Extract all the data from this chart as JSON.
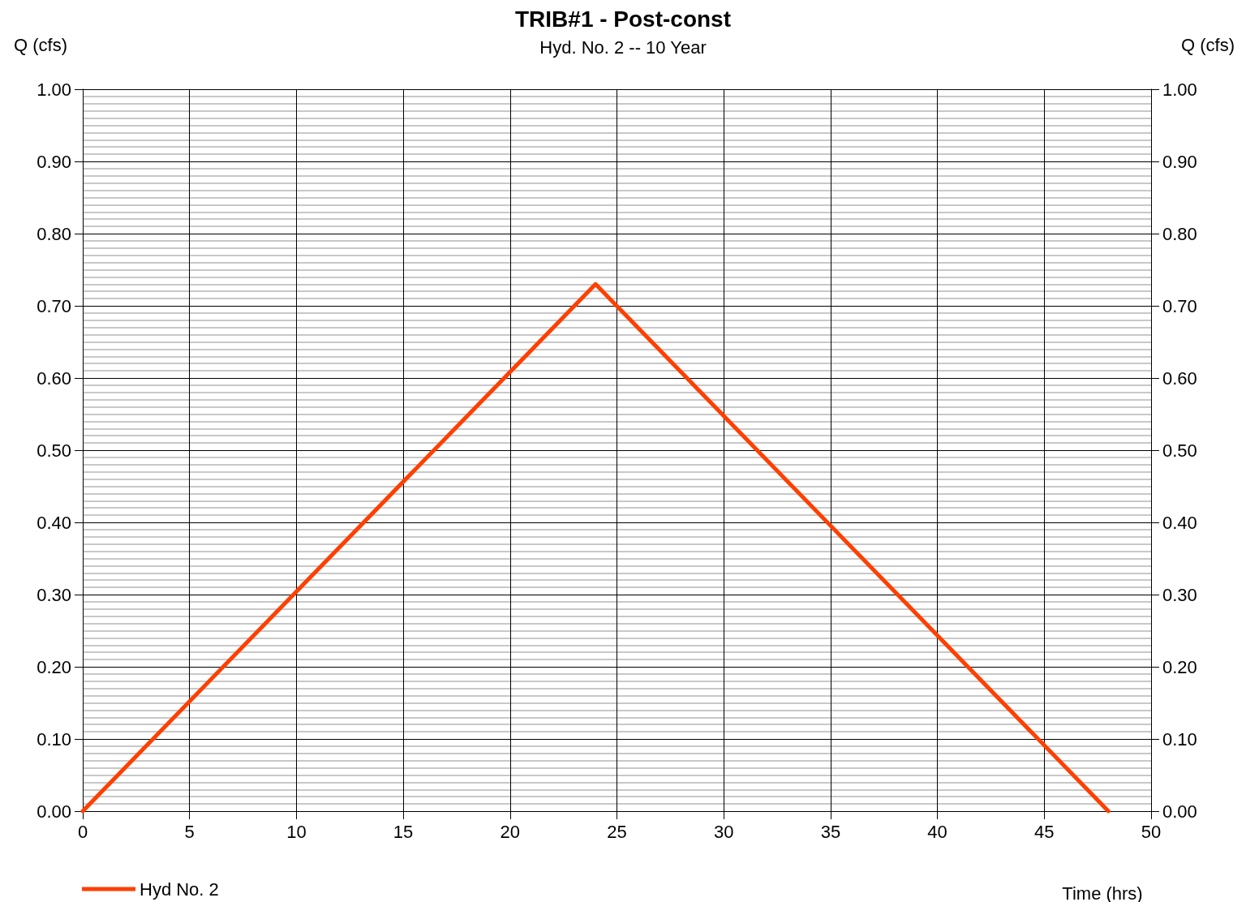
{
  "chart_data": {
    "type": "line",
    "title": "TRIB#1 - Post-const",
    "subtitle": "Hyd. No. 2 -- 10 Year",
    "xlabel": "Time (hrs)",
    "ylabel": "Q (cfs)",
    "y2label": "Q (cfs)",
    "x": [
      0,
      24,
      48
    ],
    "series": [
      {
        "name": "Hyd No. 2",
        "color": "#ff3f00",
        "values": [
          0,
          0.73,
          0
        ]
      }
    ],
    "xlim": [
      0,
      50
    ],
    "xticks": [
      0,
      5,
      10,
      15,
      20,
      25,
      30,
      35,
      40,
      45,
      50
    ],
    "ylim": [
      0,
      1
    ],
    "yticks": [
      {
        "value": 0,
        "label": "0.00"
      },
      {
        "value": 0.1,
        "label": "0.10"
      },
      {
        "value": 0.2,
        "label": "0.20"
      },
      {
        "value": 0.3,
        "label": "0.30"
      },
      {
        "value": 0.4,
        "label": "0.40"
      },
      {
        "value": 0.5,
        "label": "0.50"
      },
      {
        "value": 0.6,
        "label": "0.60"
      },
      {
        "value": 0.7,
        "label": "0.70"
      },
      {
        "value": 0.8,
        "label": "0.80"
      },
      {
        "value": 0.9,
        "label": "0.90"
      },
      {
        "value": 1,
        "label": "1.00"
      }
    ],
    "y2lim": [
      0,
      1
    ],
    "y2ticks": [
      {
        "value": 0,
        "label": "0.00"
      },
      {
        "value": 0.1,
        "label": "0.10"
      },
      {
        "value": 0.2,
        "label": "0.20"
      },
      {
        "value": 0.3,
        "label": "0.30"
      },
      {
        "value": 0.4,
        "label": "0.40"
      },
      {
        "value": 0.5,
        "label": "0.50"
      },
      {
        "value": 0.6,
        "label": "0.60"
      },
      {
        "value": 0.7,
        "label": "0.70"
      },
      {
        "value": 0.8,
        "label": "0.80"
      },
      {
        "value": 0.9,
        "label": "0.90"
      },
      {
        "value": 1,
        "label": "1.00"
      }
    ],
    "grid": true,
    "legend": "bottom left",
    "marker": "none",
    "line_style": "solid"
  }
}
